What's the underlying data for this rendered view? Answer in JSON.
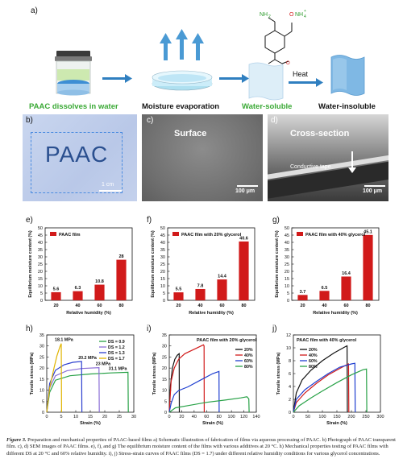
{
  "panels": {
    "a": "a)",
    "b": "b)",
    "c": "c)",
    "d": "d)",
    "e": "e)",
    "f": "f)",
    "g": "g)",
    "h": "h)",
    "i": "i)",
    "j": "j)"
  },
  "schematic": {
    "stage1": "PAAC dissolves in water",
    "stage2": "Moisture evaporation",
    "stage3": "Water-soluble",
    "stage4": "Water-insoluble",
    "heat": "Heat",
    "chem_nh2": "NH",
    "chem_nh2_sub": "2",
    "chem_onh4": "O",
    "chem_onh4_tail": "NH",
    "chem_onh4_sub": "4",
    "chem_onh4_sup": "+",
    "chem_o_bottom": "O"
  },
  "photos": {
    "b_text": "PAAC",
    "b_scale": "1 cm",
    "c_title": "Surface",
    "c_scale": "100 μm",
    "d_title": "Cross-section",
    "d_tape": "Conductive tape",
    "d_scale": "100 μm"
  },
  "colors": {
    "green_text": "#3aa935",
    "bar_red": "#d11a1a",
    "arrow_blue": "#2f7fc0",
    "ds09": "#27a146",
    "ds12": "#8b6ed6",
    "ds13": "#2c3fcf",
    "ds17": "#e0b400",
    "rh20": "#111111",
    "rh40": "#d11a1a",
    "rh60": "#1f3fd0",
    "rh80": "#27a146"
  },
  "chart_data": [
    {
      "type": "bar",
      "panel": "e",
      "legend": "PAAC film",
      "categories": [
        "20",
        "40",
        "60",
        "80"
      ],
      "values": [
        5.6,
        6.3,
        10.8,
        28
      ],
      "value_labels": [
        "5.6",
        "6.3",
        "10.8",
        "28"
      ],
      "xlabel": "Relative humidity (%)",
      "ylabel": "Equilibrium moisture content (%)",
      "ylim": [
        0,
        50
      ],
      "yticks": [
        "0",
        "5",
        "10",
        "15",
        "20",
        "25",
        "30",
        "35",
        "40",
        "45",
        "50"
      ]
    },
    {
      "type": "bar",
      "panel": "f",
      "legend": "PAAC film with 20% glycerol",
      "categories": [
        "20",
        "40",
        "60",
        "80"
      ],
      "values": [
        5.5,
        7.8,
        14.4,
        40.6
      ],
      "value_labels": [
        "5.5",
        "7.8",
        "14.4",
        "40.6"
      ],
      "xlabel": "Relative humidity (%)",
      "ylabel": "Equilibrium moisture content (%)",
      "ylim": [
        0,
        50
      ],
      "yticks": [
        "0",
        "5",
        "10",
        "15",
        "20",
        "25",
        "30",
        "35",
        "40",
        "45",
        "50"
      ]
    },
    {
      "type": "bar",
      "panel": "g",
      "legend": "PAAC film with 40% glycerol",
      "categories": [
        "20",
        "40",
        "60",
        "80"
      ],
      "values": [
        3.7,
        6.5,
        16.4,
        45.1
      ],
      "value_labels": [
        "3.7",
        "6.5",
        "16.4",
        "45.1"
      ],
      "xlabel": "Relative humidity (%)",
      "ylabel": "Equilibrium moisture content (%)",
      "ylim": [
        0,
        50
      ],
      "yticks": [
        "0",
        "5",
        "10",
        "15",
        "20",
        "25",
        "30",
        "35",
        "40",
        "45",
        "50"
      ]
    },
    {
      "type": "line",
      "panel": "h",
      "xlabel": "Strain (%)",
      "ylabel": "Tensile stress (MPa)",
      "xlim": [
        0,
        30
      ],
      "ylim": [
        0,
        35
      ],
      "xticks": [
        "0",
        "5",
        "10",
        "15",
        "20",
        "25",
        "30"
      ],
      "yticks": [
        "0",
        "5",
        "10",
        "15",
        "20",
        "25",
        "30",
        "35"
      ],
      "annotations": [
        "31.1 MPa",
        "23 MPa",
        "20.2 MPa",
        "18.1 MPa"
      ],
      "series": [
        {
          "name": "DS = 0.9",
          "points": [
            [
              0,
              0
            ],
            [
              1,
              9
            ],
            [
              3,
              14.5
            ],
            [
              8,
              16.5
            ],
            [
              15,
              17.3
            ],
            [
              22,
              17.8
            ],
            [
              28,
              18.1
            ],
            [
              28.1,
              0
            ]
          ]
        },
        {
          "name": "DS = 1.2",
          "points": [
            [
              0,
              0
            ],
            [
              1,
              11
            ],
            [
              3,
              16.5
            ],
            [
              7,
              18.8
            ],
            [
              12,
              19.8
            ],
            [
              18,
              20.2
            ],
            [
              18.1,
              0
            ]
          ]
        },
        {
          "name": "DS = 1.3",
          "points": [
            [
              0,
              0
            ],
            [
              1,
              13
            ],
            [
              3,
              19
            ],
            [
              6,
              21.5
            ],
            [
              9,
              22.6
            ],
            [
              12,
              23
            ],
            [
              12.1,
              0
            ]
          ]
        },
        {
          "name": "DS = 1.7",
          "points": [
            [
              0,
              0
            ],
            [
              1,
              11
            ],
            [
              2.5,
              20
            ],
            [
              3.5,
              25.5
            ],
            [
              4.5,
              29.5
            ],
            [
              5,
              31.1
            ],
            [
              5.1,
              0
            ]
          ]
        }
      ]
    },
    {
      "type": "line",
      "panel": "i",
      "title": "PAAC film with 20% glycerol",
      "xlabel": "Strain (%)",
      "ylabel": "Tensile stress (MPa)",
      "xlim": [
        0,
        140
      ],
      "ylim": [
        0,
        35
      ],
      "xticks": [
        "0",
        "20",
        "40",
        "60",
        "80",
        "100",
        "120",
        "140"
      ],
      "yticks": [
        "0",
        "5",
        "10",
        "15",
        "20",
        "25",
        "30",
        "35"
      ],
      "series": [
        {
          "name": "20%",
          "points": [
            [
              0,
              0
            ],
            [
              2,
              12
            ],
            [
              5,
              20
            ],
            [
              9,
              24
            ],
            [
              13,
              25.8
            ],
            [
              16,
              26.5
            ],
            [
              16.2,
              0
            ]
          ]
        },
        {
          "name": "40%",
          "points": [
            [
              0,
              0
            ],
            [
              3,
              14
            ],
            [
              8,
              20
            ],
            [
              15,
              24
            ],
            [
              25,
              26.5
            ],
            [
              40,
              28.5
            ],
            [
              55,
              30.5
            ],
            [
              56,
              30
            ],
            [
              56.2,
              0
            ]
          ]
        },
        {
          "name": "60%",
          "points": [
            [
              0,
              0
            ],
            [
              3,
              4
            ],
            [
              8,
              8
            ],
            [
              15,
              9.8
            ],
            [
              30,
              11.5
            ],
            [
              50,
              14.5
            ],
            [
              70,
              17.5
            ],
            [
              80,
              18.5
            ],
            [
              80.2,
              0
            ]
          ]
        },
        {
          "name": "80%",
          "points": [
            [
              0,
              0
            ],
            [
              10,
              2
            ],
            [
              30,
              3
            ],
            [
              60,
              4.5
            ],
            [
              90,
              5.5
            ],
            [
              115,
              6.5
            ],
            [
              125,
              7
            ],
            [
              128,
              6
            ],
            [
              128.5,
              0
            ]
          ]
        }
      ]
    },
    {
      "type": "line",
      "panel": "j",
      "title": "PAAC film with 40% glycerol",
      "xlabel": "Strain (%)",
      "ylabel": "Tensile stress (MPa)",
      "xlim": [
        0,
        300
      ],
      "ylim": [
        0,
        12
      ],
      "xticks": [
        "0",
        "50",
        "100",
        "150",
        "200",
        "250",
        "300"
      ],
      "yticks": [
        "0",
        "2",
        "4",
        "6",
        "8",
        "10",
        "12"
      ],
      "series": [
        {
          "name": "20%",
          "points": [
            [
              0,
              0
            ],
            [
              10,
              3
            ],
            [
              30,
              5
            ],
            [
              60,
              6.5
            ],
            [
              100,
              8
            ],
            [
              140,
              9.2
            ],
            [
              180,
              10.2
            ],
            [
              185,
              10.3
            ],
            [
              186,
              0
            ]
          ]
        },
        {
          "name": "40%",
          "points": [
            [
              0,
              0
            ],
            [
              10,
              1.5
            ],
            [
              40,
              3
            ],
            [
              80,
              4.5
            ],
            [
              120,
              5.8
            ],
            [
              160,
              6.8
            ],
            [
              185,
              7.4
            ],
            [
              190,
              7.5
            ],
            [
              191,
              0
            ]
          ]
        },
        {
          "name": "60%",
          "points": [
            [
              0,
              0
            ],
            [
              10,
              2
            ],
            [
              40,
              3.5
            ],
            [
              80,
              4.8
            ],
            [
              120,
              6
            ],
            [
              160,
              7
            ],
            [
              200,
              7.5
            ],
            [
              212,
              7.6
            ],
            [
              213,
              0
            ]
          ]
        },
        {
          "name": "80%",
          "points": [
            [
              0,
              0
            ],
            [
              20,
              1
            ],
            [
              60,
              2.2
            ],
            [
              100,
              3.3
            ],
            [
              150,
              4.6
            ],
            [
              200,
              5.8
            ],
            [
              240,
              6.6
            ],
            [
              252,
              6.7
            ],
            [
              253,
              0
            ]
          ]
        }
      ]
    }
  ],
  "caption": {
    "fig": "Figure 3.",
    "text": " Preparation and mechanical properties of PAAC-based films a) Schematic illustration of fabrication of films via aqueous processing of PAAC. b) Photograph of PAAC transparent film. c), d) SEM images of PAAC films. e), f), and g) The equilibrium moisture content of the films with various additives at 20 °C. h) Mechanical properties testing of PAAC films with different DS at 20 °C and 60% relative humidity. i), j) Stress-strain curves of PAAC films (DS = 1.7) under different relative humidity conditions for various glycerol concentrations."
  }
}
